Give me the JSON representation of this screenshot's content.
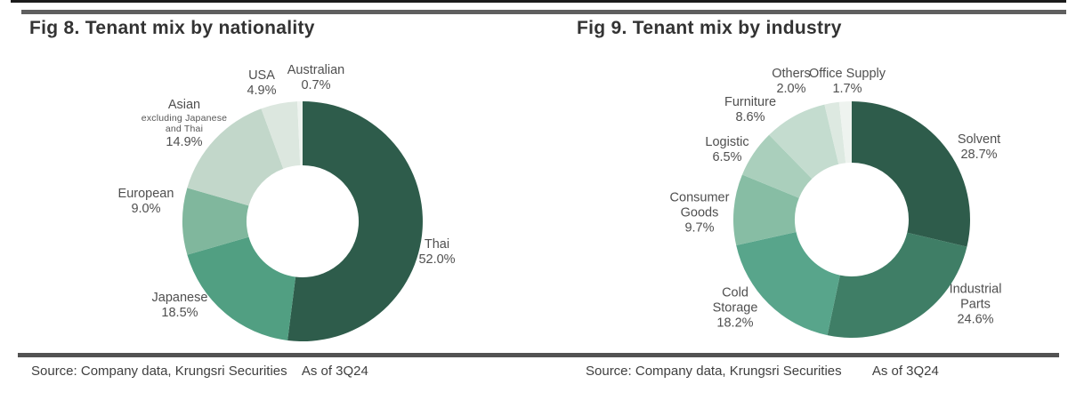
{
  "figures": [
    {
      "title": "Fig 8. Tenant mix by nationality",
      "source": "Source: Company data, Krungsri Securities",
      "as_of": "As of 3Q24"
    },
    {
      "title": "Fig 9. Tenant mix by industry",
      "source": "Source: Company data, Krungsri Securities",
      "as_of": "As of 3Q24"
    }
  ],
  "chart_data": [
    {
      "type": "pie",
      "subtype": "donut",
      "title": "Fig 8. Tenant mix by nationality",
      "unit": "%",
      "direction": "clockwise",
      "start_angle_deg": 0,
      "legend": "none",
      "slices": [
        {
          "label": "Thai",
          "value": 52.0,
          "value_label": "52.0%",
          "color": "#2e5c4b"
        },
        {
          "label": "Japanese",
          "value": 18.5,
          "value_label": "18.5%",
          "color": "#519f82"
        },
        {
          "label": "European",
          "value": 9.0,
          "value_label": "9.0%",
          "color": "#80b79d"
        },
        {
          "label": "Asian",
          "note_lines": [
            "excluding Japanese",
            "and Thai"
          ],
          "value": 14.9,
          "value_label": "14.9%",
          "color": "#c2d7ca"
        },
        {
          "label": "USA",
          "value": 4.9,
          "value_label": "4.9%",
          "color": "#dce7df"
        },
        {
          "label": "Australian",
          "value": 0.7,
          "value_label": "0.7%",
          "color": "#eef3ef"
        }
      ]
    },
    {
      "type": "pie",
      "subtype": "donut",
      "title": "Fig 9. Tenant mix by industry",
      "unit": "%",
      "direction": "clockwise",
      "start_angle_deg": 0,
      "legend": "none",
      "slices": [
        {
          "label": "Solvent",
          "value": 28.7,
          "value_label": "28.7%",
          "color": "#2e5c4b"
        },
        {
          "label": "Industrial Parts",
          "label_lines": [
            "Industrial",
            "Parts"
          ],
          "value": 24.6,
          "value_label": "24.6%",
          "color": "#3f7e66"
        },
        {
          "label": "Cold Storage",
          "label_lines": [
            "Cold",
            "Storage"
          ],
          "value": 18.2,
          "value_label": "18.2%",
          "color": "#58a58b"
        },
        {
          "label": "Consumer Goods",
          "label_lines": [
            "Consumer",
            "Goods"
          ],
          "value": 9.7,
          "value_label": "9.7%",
          "color": "#87bda4"
        },
        {
          "label": "Logistic",
          "value": 6.5,
          "value_label": "6.5%",
          "color": "#aacfbc"
        },
        {
          "label": "Furniture",
          "value": 8.6,
          "value_label": "8.6%",
          "color": "#c4dccf"
        },
        {
          "label": "Others",
          "value": 2.0,
          "value_label": "2.0%",
          "color": "#dde9e1"
        },
        {
          "label": "Office Supply",
          "value": 1.7,
          "value_label": "1.7%",
          "color": "#eef3ef"
        }
      ]
    }
  ]
}
